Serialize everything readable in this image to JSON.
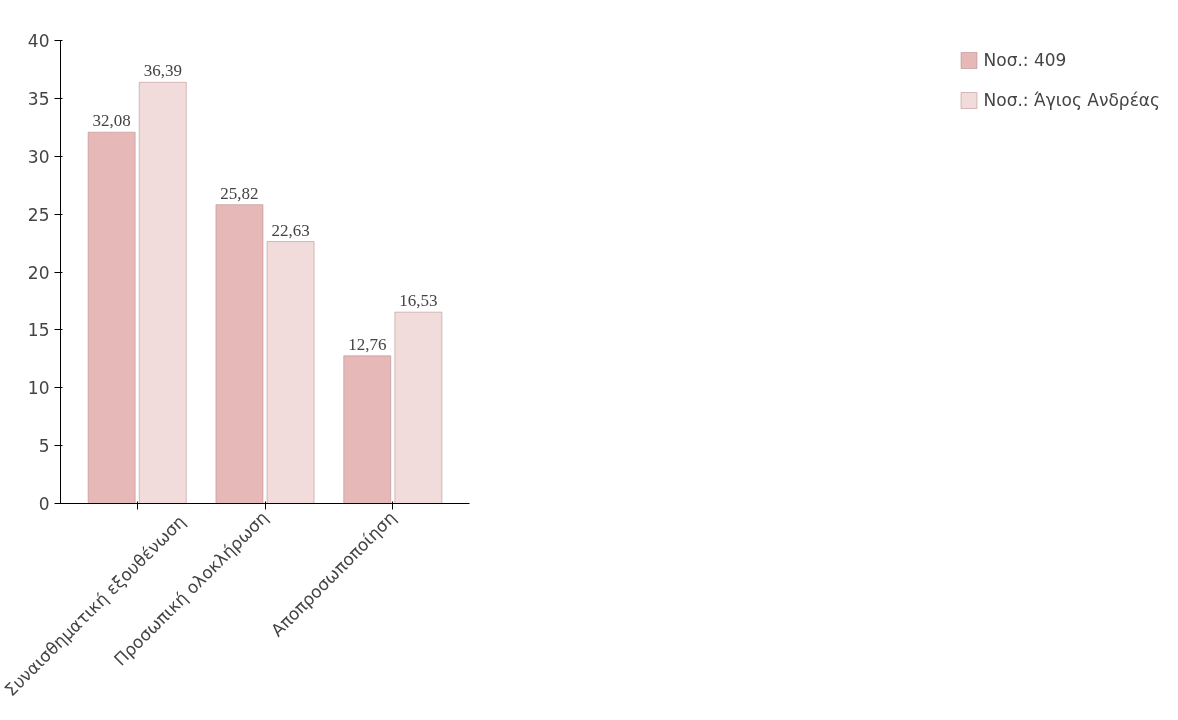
{
  "chart_data": {
    "type": "bar",
    "categories": [
      "Συναισθηματική  εξουθένωση",
      "Προσωπική ολοκλήρωση",
      "Αποπροσωποποίηση"
    ],
    "series": [
      {
        "name": "Νοσ.: 409",
        "color": "#e6b8b7",
        "values": [
          32.08,
          25.82,
          12.76
        ],
        "value_labels": [
          "32,08",
          "25,82",
          "12,76"
        ]
      },
      {
        "name": "Νοσ.: Άγιος Ανδρέας",
        "color": "#f2dcdb",
        "values": [
          36.39,
          22.63,
          16.53
        ],
        "value_labels": [
          "36,39",
          "22,63",
          "16,53"
        ]
      }
    ],
    "ylim": [
      0,
      40
    ],
    "yticks": [
      0,
      5,
      10,
      15,
      20,
      25,
      30,
      35,
      40
    ],
    "grid": false,
    "legend": "right"
  }
}
